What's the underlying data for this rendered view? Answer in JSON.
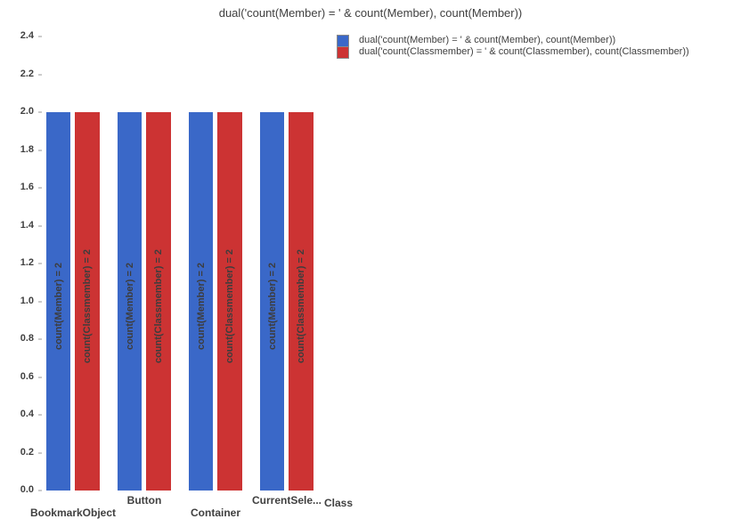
{
  "chart_data": {
    "type": "bar",
    "title": "dual('count(Member) = ' & count(Member), count(Member))",
    "categories": [
      "BookmarkObject",
      "Button",
      "Container",
      "CurrentSele..."
    ],
    "series": [
      {
        "name": "dual('count(Member) = ' & count(Member), count(Member))",
        "color": "#3A68C8",
        "values": [
          2,
          2,
          2,
          2
        ],
        "bar_labels": [
          "count(Member) = 2",
          "count(Member) = 2",
          "count(Member) = 2",
          "count(Member) = 2"
        ]
      },
      {
        "name": "dual('count(Classmember) = ' & count(Classmember), count(Classmember))",
        "color": "#CC3333",
        "values": [
          2,
          2,
          2,
          2
        ],
        "bar_labels": [
          "count(Classmember) = 2",
          "count(Classmember) = 2",
          "count(Classmember) = 2",
          "count(Classmember) = 2"
        ]
      }
    ],
    "xlabel": "Class",
    "ylabel": "",
    "ylim": [
      0,
      2.4
    ],
    "ytick_step": 0.2,
    "ytick_labels": [
      "0.0",
      "0.2",
      "0.4",
      "0.6",
      "0.8",
      "1.0",
      "1.2",
      "1.4",
      "1.6",
      "1.8",
      "2.0",
      "2.2",
      "2.4"
    ],
    "grid": false,
    "legend_position": "top-right",
    "background_color": "#ffffff",
    "text_color": "#404040"
  }
}
